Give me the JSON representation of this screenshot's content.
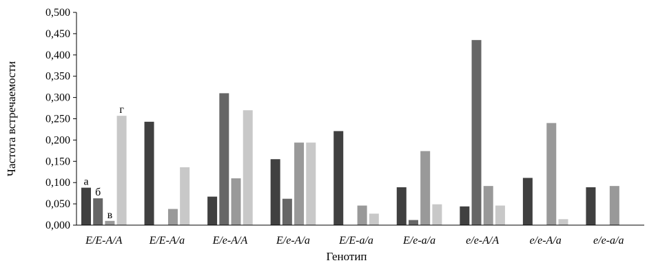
{
  "chart_data": {
    "type": "bar",
    "title": "",
    "xlabel": "Генотип",
    "ylabel": "Частота встречаемости",
    "ylim": [
      0,
      0.5
    ],
    "yticks": [
      "0,000",
      "0,050",
      "0,100",
      "0,150",
      "0,200",
      "0,250",
      "0,300",
      "0,350",
      "0,400",
      "0,450",
      "0,500"
    ],
    "grid": false,
    "categories": [
      "E/E-A/A",
      "E/E-A/a",
      "E/e-A/A",
      "E/e-A/a",
      "E/E-a/a",
      "E/e-a/a",
      "e/e-A/A",
      "e/e-A/a",
      "e/e-a/a"
    ],
    "series": [
      {
        "name": "а",
        "color": "#404040",
        "values": [
          0.088,
          0.243,
          0.067,
          0.155,
          0.221,
          0.089,
          0.044,
          0.111,
          0.089
        ]
      },
      {
        "name": "б",
        "color": "#666666",
        "values": [
          0.063,
          0.0,
          0.31,
          0.062,
          0.0,
          0.012,
          0.435,
          0.0,
          0.0
        ]
      },
      {
        "name": "в",
        "color": "#999999",
        "values": [
          0.01,
          0.038,
          0.11,
          0.194,
          0.046,
          0.174,
          0.092,
          0.24,
          0.092
        ]
      },
      {
        "name": "г",
        "color": "#c8c8c8",
        "values": [
          0.257,
          0.136,
          0.27,
          0.194,
          0.027,
          0.049,
          0.046,
          0.014,
          0.0
        ]
      }
    ],
    "bar_letters": [
      "а",
      "б",
      "в",
      "г"
    ]
  }
}
